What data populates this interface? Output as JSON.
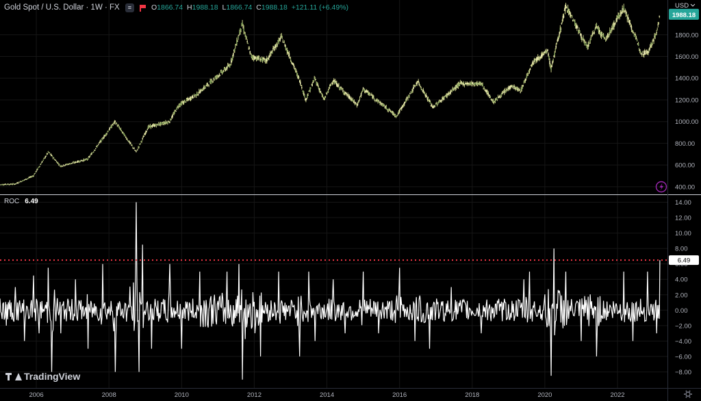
{
  "header": {
    "symbol": "Gold Spot / U.S. Dollar · 1W · FX",
    "pill_label": "≡",
    "open_label": "O",
    "open": "1866.74",
    "high_label": "H",
    "high": "1988.18",
    "low_label": "L",
    "low": "1866.74",
    "close_label": "C",
    "close": "1988.18",
    "change": "+121.11 (+6.49%)"
  },
  "currency": "USD",
  "indicator": {
    "name": "ROC",
    "value": "6.49"
  },
  "logo_text": "TradingView",
  "colors": {
    "background": "#000000",
    "up": "#26a69a",
    "price_candle": "#c8cd86",
    "roc_line": "#ffffff",
    "ref_line": "#f23645",
    "price_label": "#26a69a"
  },
  "chart_data": [
    {
      "type": "line",
      "series": [
        {
          "values": [
            {
              "x": "2005-01",
              "y": 420
            },
            {
              "x": "2005-06",
              "y": 425
            },
            {
              "x": "2005-12",
              "y": 500
            },
            {
              "x": "2006-05",
              "y": 720
            },
            {
              "x": "2006-09",
              "y": 590
            },
            {
              "x": "2007-06",
              "y": 655
            },
            {
              "x": "2008-03",
              "y": 1000
            },
            {
              "x": "2008-10",
              "y": 720
            },
            {
              "x": "2009-02",
              "y": 950
            },
            {
              "x": "2009-09",
              "y": 1000
            },
            {
              "x": "2009-12",
              "y": 1150
            },
            {
              "x": "2010-06",
              "y": 1250
            },
            {
              "x": "2010-12",
              "y": 1400
            },
            {
              "x": "2011-05",
              "y": 1520
            },
            {
              "x": "2011-09",
              "y": 1900
            },
            {
              "x": "2011-12",
              "y": 1600
            },
            {
              "x": "2012-05",
              "y": 1560
            },
            {
              "x": "2012-10",
              "y": 1780
            },
            {
              "x": "2013-04",
              "y": 1380
            },
            {
              "x": "2013-06",
              "y": 1200
            },
            {
              "x": "2013-09",
              "y": 1400
            },
            {
              "x": "2013-12",
              "y": 1200
            },
            {
              "x": "2014-03",
              "y": 1380
            },
            {
              "x": "2014-11",
              "y": 1150
            },
            {
              "x": "2015-01",
              "y": 1300
            },
            {
              "x": "2015-12",
              "y": 1050
            },
            {
              "x": "2016-07",
              "y": 1370
            },
            {
              "x": "2016-12",
              "y": 1130
            },
            {
              "x": "2017-09",
              "y": 1350
            },
            {
              "x": "2018-04",
              "y": 1350
            },
            {
              "x": "2018-08",
              "y": 1180
            },
            {
              "x": "2019-02",
              "y": 1330
            },
            {
              "x": "2019-05",
              "y": 1280
            },
            {
              "x": "2019-09",
              "y": 1550
            },
            {
              "x": "2020-02",
              "y": 1650
            },
            {
              "x": "2020-03",
              "y": 1480
            },
            {
              "x": "2020-08",
              "y": 2070
            },
            {
              "x": "2021-03",
              "y": 1680
            },
            {
              "x": "2021-06",
              "y": 1880
            },
            {
              "x": "2021-09",
              "y": 1750
            },
            {
              "x": "2022-03",
              "y": 2050
            },
            {
              "x": "2022-09",
              "y": 1630
            },
            {
              "x": "2022-11",
              "y": 1640
            },
            {
              "x": "2023-02",
              "y": 1820
            },
            {
              "x": "2023-03",
              "y": 1988.18
            }
          ]
        }
      ],
      "xticks": [
        "2006",
        "2008",
        "2010",
        "2012",
        "2014",
        "2016",
        "2018",
        "2020",
        "2022"
      ],
      "yticks": [
        "400.00",
        "600.00",
        "800.00",
        "1000.00",
        "1200.00",
        "1400.00",
        "1600.00",
        "1800.00"
      ],
      "last_price_label": "1988.18",
      "ylim": [
        330,
        2120
      ]
    },
    {
      "type": "line",
      "series": [
        {
          "name": "ROC",
          "values": [
            {
              "x": "2005-01",
              "y": 1.5
            },
            {
              "x": "2005-03",
              "y": -2
            },
            {
              "x": "2005-06",
              "y": 3
            },
            {
              "x": "2005-09",
              "y": -4
            },
            {
              "x": "2005-12",
              "y": 4.5
            },
            {
              "x": "2006-02",
              "y": -3
            },
            {
              "x": "2006-05",
              "y": 5.5
            },
            {
              "x": "2006-06",
              "y": -8
            },
            {
              "x": "2006-09",
              "y": -3
            },
            {
              "x": "2007-02",
              "y": 4
            },
            {
              "x": "2007-06",
              "y": -5
            },
            {
              "x": "2007-11",
              "y": 6
            },
            {
              "x": "2008-03",
              "y": -8
            },
            {
              "x": "2008-10",
              "y": 14
            },
            {
              "x": "2008-11",
              "y": -8
            },
            {
              "x": "2008-12",
              "y": 8.5
            },
            {
              "x": "2009-03",
              "y": -5
            },
            {
              "x": "2009-09",
              "y": 6
            },
            {
              "x": "2010-01",
              "y": -5
            },
            {
              "x": "2010-07",
              "y": 5
            },
            {
              "x": "2011-04",
              "y": 5
            },
            {
              "x": "2011-08",
              "y": 6
            },
            {
              "x": "2011-09",
              "y": -9
            },
            {
              "x": "2012-03",
              "y": -6
            },
            {
              "x": "2012-09",
              "y": 5
            },
            {
              "x": "2013-04",
              "y": -6
            },
            {
              "x": "2013-07",
              "y": 5
            },
            {
              "x": "2013-09",
              "y": -4
            },
            {
              "x": "2014-03",
              "y": 4
            },
            {
              "x": "2014-07",
              "y": -3
            },
            {
              "x": "2015-01",
              "y": 5
            },
            {
              "x": "2015-06",
              "y": -3
            },
            {
              "x": "2016-01",
              "y": 5.5
            },
            {
              "x": "2016-06",
              "y": -4
            },
            {
              "x": "2016-11",
              "y": -5
            },
            {
              "x": "2017-06",
              "y": 3
            },
            {
              "x": "2018-04",
              "y": -3
            },
            {
              "x": "2019-06",
              "y": 4
            },
            {
              "x": "2019-08",
              "y": 5
            },
            {
              "x": "2020-03",
              "y": -8.5
            },
            {
              "x": "2020-04",
              "y": 8
            },
            {
              "x": "2020-08",
              "y": 5
            },
            {
              "x": "2021-01",
              "y": -4
            },
            {
              "x": "2021-06",
              "y": -6
            },
            {
              "x": "2022-03",
              "y": 5
            },
            {
              "x": "2022-06",
              "y": -4
            },
            {
              "x": "2022-11",
              "y": 5
            },
            {
              "x": "2023-02",
              "y": -3
            },
            {
              "x": "2023-03",
              "y": 6.49
            }
          ]
        }
      ],
      "yticks": [
        "14.00",
        "12.00",
        "10.00",
        "8.00",
        "6.00",
        "4.00",
        "2.00",
        "0.00",
        "−2.00",
        "−4.00",
        "−6.00",
        "−8.00"
      ],
      "reference_value": 6.49,
      "last_value_label": "6.49",
      "ylim": [
        -10,
        14.4
      ]
    }
  ]
}
